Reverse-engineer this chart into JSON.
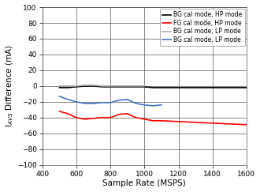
{
  "xlabel": "Sample Rate (MSPS)",
  "ylabel": "I$_{AVS}$ Difference (mA)",
  "xlim": [
    400,
    1600
  ],
  "ylim": [
    -100,
    100
  ],
  "xticks": [
    400,
    600,
    800,
    1000,
    1200,
    1400,
    1600
  ],
  "yticks": [
    -100,
    -80,
    -60,
    -40,
    -20,
    0,
    20,
    40,
    60,
    80,
    100
  ],
  "legend": [
    {
      "label": "BG cal mode, HP mode",
      "color": "#000000",
      "lw": 1.2
    },
    {
      "label": "FG cal mode, HP mode",
      "color": "#ff0000",
      "lw": 1.2
    },
    {
      "label": "BG cal mode, LP mode",
      "color": "#aaaaaa",
      "lw": 1.2
    },
    {
      "label": "BG cal mode, LP mode",
      "color": "#4472c4",
      "lw": 1.2
    }
  ],
  "lines": {
    "BG_HP": {
      "color": "#000000",
      "lw": 1.2,
      "x": [
        500,
        550,
        600,
        650,
        700,
        750,
        800,
        850,
        900,
        950,
        1000,
        1050,
        1100,
        1200,
        1300,
        1400,
        1500,
        1600
      ],
      "y": [
        -2,
        -2,
        -1,
        0,
        0,
        -1,
        -1,
        -1,
        -1,
        -1,
        -1,
        -2,
        -2,
        -2,
        -2,
        -2,
        -2,
        -2
      ]
    },
    "FG_HP": {
      "color": "#ff0000",
      "lw": 1.2,
      "x": [
        500,
        550,
        600,
        650,
        700,
        750,
        800,
        850,
        900,
        950,
        1000,
        1050,
        1100,
        1200,
        1300,
        1400,
        1500,
        1600
      ],
      "y": [
        -32,
        -35,
        -40,
        -42,
        -41,
        -40,
        -40,
        -36,
        -35,
        -40,
        -42,
        -44,
        -44,
        -45,
        -46,
        -47,
        -48,
        -49
      ]
    },
    "BG_LP_gray": {
      "color": "#aaaaaa",
      "lw": 1.2,
      "x": [
        500,
        550,
        600,
        650,
        700,
        750,
        800,
        850,
        900,
        950,
        1000
      ],
      "y": [
        0,
        0,
        0,
        1,
        1,
        0,
        0,
        0,
        0,
        0,
        0
      ]
    },
    "BG_LP_blue": {
      "color": "#4472c4",
      "lw": 1.2,
      "x": [
        500,
        550,
        600,
        650,
        700,
        750,
        800,
        850,
        900,
        950,
        1000,
        1050,
        1100
      ],
      "y": [
        -13,
        -17,
        -20,
        -22,
        -22,
        -21,
        -21,
        -18,
        -17,
        -22,
        -24,
        -25,
        -24
      ]
    }
  },
  "legend_fontsize": 5.5,
  "tick_fontsize": 6.5,
  "label_fontsize": 7.5,
  "bg_color": "#ffffff"
}
